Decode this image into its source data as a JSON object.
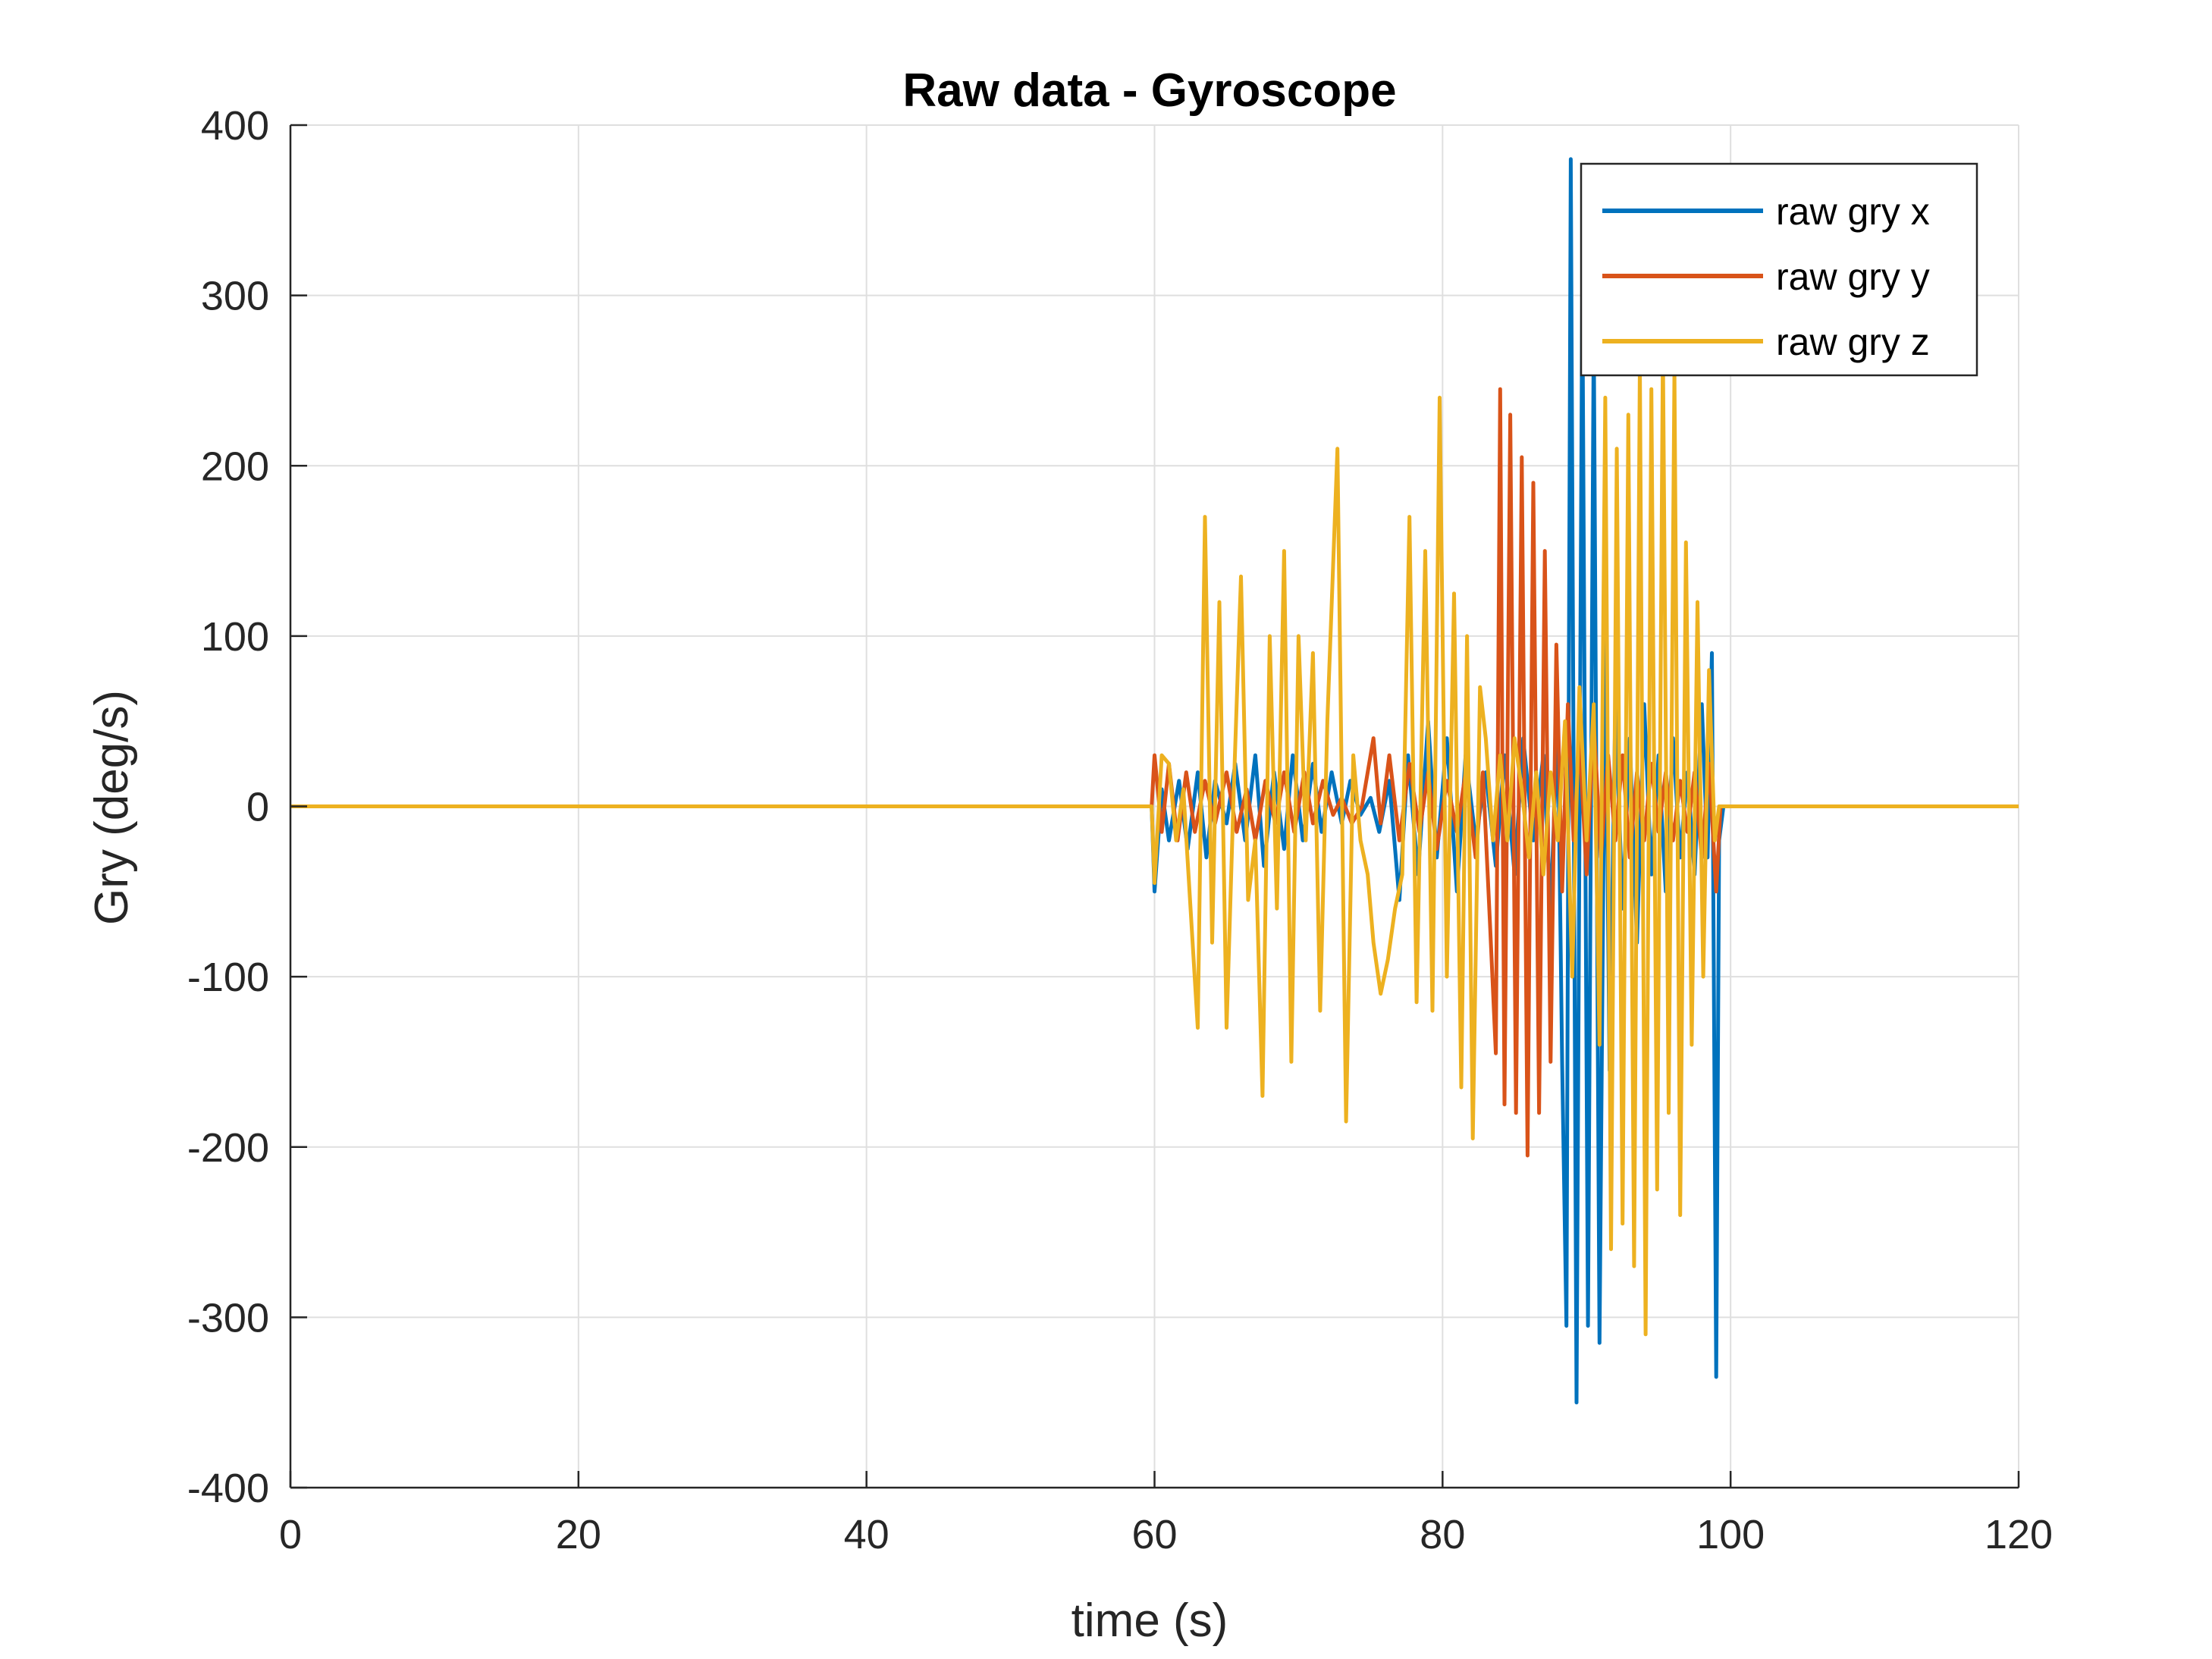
{
  "chart_data": {
    "type": "line",
    "title": "Raw data - Gyroscope",
    "xlabel": "time (s)",
    "ylabel": "Gry (deg/s)",
    "xlim": [
      0,
      120
    ],
    "ylim": [
      -400,
      400
    ],
    "xticks": [
      0,
      20,
      40,
      60,
      80,
      100,
      120
    ],
    "yticks": [
      -400,
      -300,
      -200,
      -100,
      0,
      100,
      200,
      300,
      400
    ],
    "xtick_labels": [
      "0",
      "20",
      "40",
      "60",
      "80",
      "100",
      "120"
    ],
    "ytick_labels": [
      "-400",
      "-300",
      "-200",
      "-100",
      "0",
      "100",
      "200",
      "300",
      "400"
    ],
    "grid": true,
    "legend_position": "top-right",
    "series": [
      {
        "name": "raw gry x",
        "color": "#0072BD",
        "points": [
          [
            0,
            0
          ],
          [
            20,
            0
          ],
          [
            40,
            0
          ],
          [
            59.8,
            0
          ],
          [
            60,
            -50
          ],
          [
            60.5,
            10
          ],
          [
            61,
            -20
          ],
          [
            61.7,
            15
          ],
          [
            62.3,
            -25
          ],
          [
            63,
            20
          ],
          [
            63.6,
            -30
          ],
          [
            64.2,
            15
          ],
          [
            65,
            -10
          ],
          [
            65.6,
            25
          ],
          [
            66.3,
            -20
          ],
          [
            67,
            30
          ],
          [
            67.6,
            -35
          ],
          [
            68.3,
            20
          ],
          [
            69,
            -25
          ],
          [
            69.6,
            30
          ],
          [
            70.3,
            -20
          ],
          [
            71,
            25
          ],
          [
            71.6,
            -15
          ],
          [
            72.3,
            20
          ],
          [
            73,
            -10
          ],
          [
            73.6,
            15
          ],
          [
            74.3,
            -5
          ],
          [
            75,
            5
          ],
          [
            75.6,
            -15
          ],
          [
            76.3,
            15
          ],
          [
            77,
            -55
          ],
          [
            77.6,
            30
          ],
          [
            78.3,
            -40
          ],
          [
            79,
            50
          ],
          [
            79.6,
            -30
          ],
          [
            80.3,
            40
          ],
          [
            81,
            -50
          ],
          [
            81.6,
            30
          ],
          [
            82.3,
            -20
          ],
          [
            83,
            20
          ],
          [
            83.7,
            -35
          ],
          [
            84.3,
            30
          ],
          [
            85,
            -40
          ],
          [
            85.6,
            40
          ],
          [
            86.3,
            -20
          ],
          [
            87,
            30
          ],
          [
            87.5,
            -60
          ],
          [
            88,
            50
          ],
          [
            88.3,
            -150
          ],
          [
            88.6,
            -305
          ],
          [
            88.9,
            380
          ],
          [
            89.3,
            -350
          ],
          [
            89.7,
            310
          ],
          [
            90.1,
            -305
          ],
          [
            90.5,
            280
          ],
          [
            90.9,
            -315
          ],
          [
            91.3,
            100
          ],
          [
            91.6,
            -155
          ],
          [
            92,
            60
          ],
          [
            92.5,
            -60
          ],
          [
            93,
            40
          ],
          [
            93.5,
            -80
          ],
          [
            94,
            60
          ],
          [
            94.5,
            -40
          ],
          [
            95,
            30
          ],
          [
            95.5,
            -50
          ],
          [
            96,
            40
          ],
          [
            96.5,
            -30
          ],
          [
            97,
            20
          ],
          [
            97.5,
            -40
          ],
          [
            98,
            60
          ],
          [
            98.4,
            -30
          ],
          [
            98.7,
            90
          ],
          [
            99,
            -335
          ],
          [
            99.2,
            -20
          ],
          [
            99.5,
            0
          ],
          [
            100,
            0
          ],
          [
            110,
            0
          ],
          [
            120,
            0
          ]
        ]
      },
      {
        "name": "raw gry y",
        "color": "#D95319",
        "points": [
          [
            0,
            0
          ],
          [
            20,
            0
          ],
          [
            40,
            0
          ],
          [
            59.8,
            0
          ],
          [
            60,
            30
          ],
          [
            60.5,
            -15
          ],
          [
            61,
            25
          ],
          [
            61.6,
            -20
          ],
          [
            62.2,
            20
          ],
          [
            62.8,
            -15
          ],
          [
            63.5,
            15
          ],
          [
            64.2,
            -10
          ],
          [
            65,
            20
          ],
          [
            65.7,
            -15
          ],
          [
            66.4,
            10
          ],
          [
            67,
            -20
          ],
          [
            67.7,
            15
          ],
          [
            68.4,
            -10
          ],
          [
            69,
            20
          ],
          [
            69.7,
            -15
          ],
          [
            70.4,
            20
          ],
          [
            71,
            -10
          ],
          [
            71.7,
            15
          ],
          [
            72.4,
            -5
          ],
          [
            73,
            5
          ],
          [
            73.7,
            -10
          ],
          [
            74.4,
            0
          ],
          [
            75.2,
            40
          ],
          [
            75.7,
            -10
          ],
          [
            76.3,
            30
          ],
          [
            77,
            -20
          ],
          [
            77.7,
            25
          ],
          [
            78.4,
            -15
          ],
          [
            79,
            20
          ],
          [
            79.6,
            -25
          ],
          [
            80.3,
            15
          ],
          [
            81,
            -15
          ],
          [
            81.6,
            20
          ],
          [
            82.3,
            -30
          ],
          [
            82.8,
            20
          ],
          [
            83.3,
            -70
          ],
          [
            83.7,
            -145
          ],
          [
            84,
            245
          ],
          [
            84.3,
            -175
          ],
          [
            84.7,
            230
          ],
          [
            85.1,
            -180
          ],
          [
            85.5,
            205
          ],
          [
            85.9,
            -205
          ],
          [
            86.3,
            190
          ],
          [
            86.7,
            -180
          ],
          [
            87.1,
            150
          ],
          [
            87.5,
            -150
          ],
          [
            87.9,
            95
          ],
          [
            88.3,
            -50
          ],
          [
            88.7,
            60
          ],
          [
            89.1,
            -20
          ],
          [
            89.5,
            40
          ],
          [
            90,
            -40
          ],
          [
            90.5,
            50
          ],
          [
            91,
            -30
          ],
          [
            91.5,
            30
          ],
          [
            92,
            -20
          ],
          [
            92.5,
            30
          ],
          [
            93,
            -30
          ],
          [
            93.5,
            20
          ],
          [
            94,
            -20
          ],
          [
            94.5,
            25
          ],
          [
            95,
            -15
          ],
          [
            95.5,
            20
          ],
          [
            96,
            -20
          ],
          [
            96.5,
            15
          ],
          [
            97,
            -15
          ],
          [
            97.5,
            20
          ],
          [
            98,
            -30
          ],
          [
            98.5,
            25
          ],
          [
            99,
            -50
          ],
          [
            99.3,
            0
          ],
          [
            100,
            0
          ],
          [
            110,
            0
          ],
          [
            120,
            0
          ]
        ]
      },
      {
        "name": "raw gry z",
        "color": "#EDB120",
        "points": [
          [
            0,
            0
          ],
          [
            20,
            0
          ],
          [
            40,
            0
          ],
          [
            59.8,
            0
          ],
          [
            60,
            -45
          ],
          [
            60.5,
            30
          ],
          [
            61,
            25
          ],
          [
            61.5,
            -20
          ],
          [
            62,
            10
          ],
          [
            62.5,
            -60
          ],
          [
            63,
            -130
          ],
          [
            63.5,
            170
          ],
          [
            64,
            -80
          ],
          [
            64.5,
            120
          ],
          [
            65,
            -130
          ],
          [
            65.5,
            10
          ],
          [
            66,
            135
          ],
          [
            66.5,
            -55
          ],
          [
            67,
            -20
          ],
          [
            67.5,
            -170
          ],
          [
            68,
            100
          ],
          [
            68.5,
            -60
          ],
          [
            69,
            150
          ],
          [
            69.5,
            -150
          ],
          [
            70,
            100
          ],
          [
            70.5,
            -20
          ],
          [
            71,
            90
          ],
          [
            71.5,
            -120
          ],
          [
            72,
            50
          ],
          [
            72.7,
            210
          ],
          [
            73.3,
            -185
          ],
          [
            73.8,
            30
          ],
          [
            74.3,
            -20
          ],
          [
            74.8,
            -40
          ],
          [
            75.2,
            -80
          ],
          [
            75.7,
            -110
          ],
          [
            76.2,
            -90
          ],
          [
            76.7,
            -60
          ],
          [
            77.2,
            -40
          ],
          [
            77.7,
            170
          ],
          [
            78.2,
            -115
          ],
          [
            78.8,
            150
          ],
          [
            79.3,
            -120
          ],
          [
            79.8,
            240
          ],
          [
            80.3,
            -100
          ],
          [
            80.8,
            125
          ],
          [
            81.3,
            -165
          ],
          [
            81.7,
            100
          ],
          [
            82.1,
            -195
          ],
          [
            82.6,
            70
          ],
          [
            83,
            40
          ],
          [
            83.5,
            -20
          ],
          [
            84,
            30
          ],
          [
            84.5,
            -20
          ],
          [
            85,
            40
          ],
          [
            85.5,
            10
          ],
          [
            86,
            -30
          ],
          [
            86.5,
            20
          ],
          [
            87,
            -40
          ],
          [
            87.5,
            20
          ],
          [
            88,
            -20
          ],
          [
            88.5,
            50
          ],
          [
            89,
            -100
          ],
          [
            89.5,
            70
          ],
          [
            90,
            -20
          ],
          [
            90.5,
            60
          ],
          [
            90.9,
            -140
          ],
          [
            91.3,
            240
          ],
          [
            91.7,
            -260
          ],
          [
            92.1,
            210
          ],
          [
            92.5,
            -245
          ],
          [
            92.9,
            230
          ],
          [
            93.3,
            -270
          ],
          [
            93.7,
            260
          ],
          [
            94.1,
            -310
          ],
          [
            94.5,
            245
          ],
          [
            94.9,
            -225
          ],
          [
            95.3,
            270
          ],
          [
            95.7,
            -180
          ],
          [
            96.1,
            255
          ],
          [
            96.5,
            -240
          ],
          [
            96.9,
            155
          ],
          [
            97.3,
            -140
          ],
          [
            97.7,
            120
          ],
          [
            98.1,
            -100
          ],
          [
            98.5,
            80
          ],
          [
            98.9,
            -20
          ],
          [
            99.2,
            0
          ],
          [
            100,
            0
          ],
          [
            110,
            0
          ],
          [
            120,
            0
          ]
        ]
      }
    ]
  }
}
